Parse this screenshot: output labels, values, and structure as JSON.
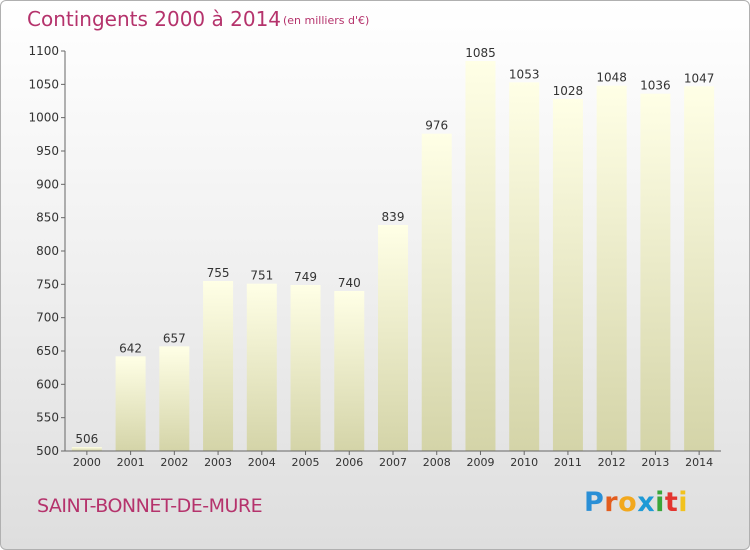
{
  "title": "Contingents 2000 à 2014",
  "subtitle": "(en milliers d'€)",
  "commune": "SAINT-BONNET-DE-MURE",
  "logo": {
    "text": "Proxiti",
    "letter_colors": [
      "#2a8fd6",
      "#e35d1e",
      "#f2a81d",
      "#1e9ad6",
      "#3aa63a",
      "#e3342f",
      "#f2c21d"
    ]
  },
  "colors": {
    "accent": "#b5336c",
    "bar_top": "#ffffe6",
    "bar_bottom": "#d4d4a8"
  },
  "chart_data": {
    "type": "bar",
    "categories": [
      "2000",
      "2001",
      "2002",
      "2003",
      "2004",
      "2005",
      "2006",
      "2007",
      "2008",
      "2009",
      "2010",
      "2011",
      "2012",
      "2013",
      "2014"
    ],
    "values": [
      506,
      642,
      657,
      755,
      751,
      749,
      740,
      839,
      976,
      1085,
      1053,
      1028,
      1048,
      1036,
      1047
    ],
    "ylim": [
      500,
      1100
    ],
    "yticks": [
      500,
      550,
      600,
      650,
      700,
      750,
      800,
      850,
      900,
      950,
      1000,
      1050,
      1100
    ],
    "grid": false,
    "legend": "none"
  }
}
